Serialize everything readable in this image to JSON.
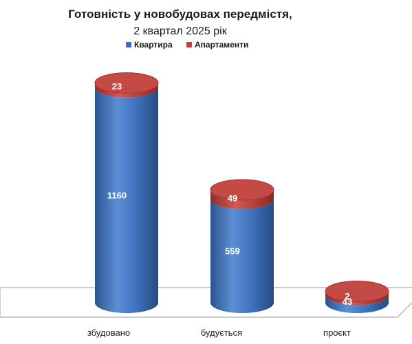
{
  "chart_data": {
    "type": "bar",
    "style": "3d-cylinder-stacked",
    "title": "Готовність у новобудовах передмістя,",
    "subtitle": "2 квартал 2025 рік",
    "categories": [
      "збудовано",
      "будується",
      "проєкт"
    ],
    "series": [
      {
        "name": "Квартира",
        "values": [
          1160,
          559,
          43
        ],
        "color": "#3d6fc0"
      },
      {
        "name": "Апартаменти",
        "values": [
          23,
          49,
          2
        ],
        "color": "#c0413c"
      }
    ],
    "legend_position": "top",
    "grid": false
  }
}
